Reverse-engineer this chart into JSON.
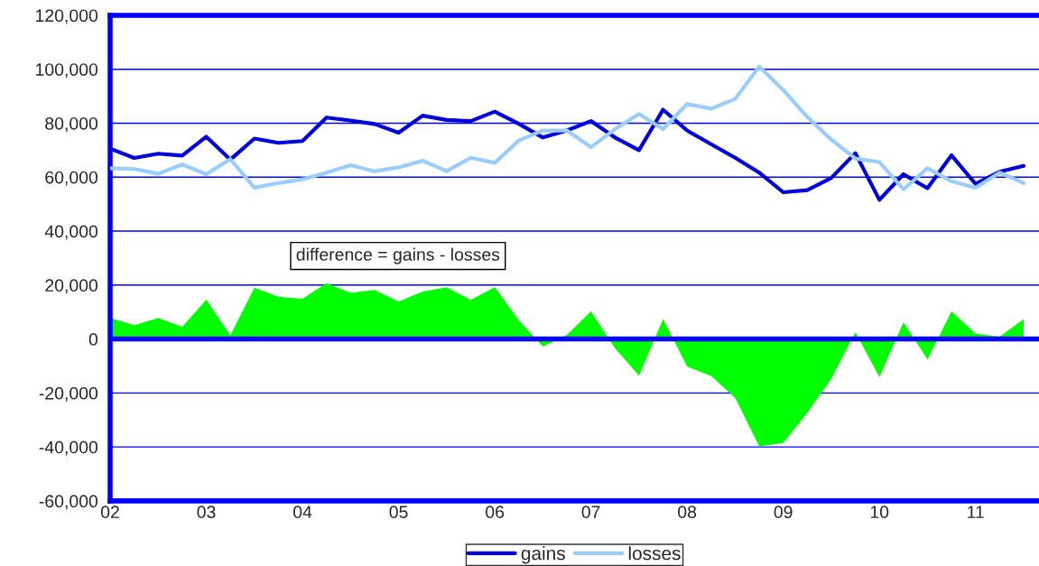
{
  "chart_data": {
    "type": "line",
    "x": [
      2002,
      2002.25,
      2002.5,
      2002.75,
      2003,
      2003.25,
      2003.5,
      2003.75,
      2004,
      2004.25,
      2004.5,
      2004.75,
      2005,
      2005.25,
      2005.5,
      2005.75,
      2006,
      2006.25,
      2006.5,
      2006.75,
      2007,
      2007.25,
      2007.5,
      2007.75,
      2008,
      2008.25,
      2008.5,
      2008.75,
      2009,
      2009.25,
      2009.5,
      2009.75,
      2010,
      2010.25,
      2010.5,
      2010.75,
      2011,
      2011.25,
      2011.5
    ],
    "series": [
      {
        "name": "gains",
        "color": "#0000dd",
        "values": [
          70600,
          67100,
          68700,
          68000,
          75000,
          66500,
          74300,
          72700,
          73400,
          82100,
          81000,
          79700,
          76500,
          82800,
          81200,
          80800,
          84300,
          79800,
          74700,
          77300,
          80800,
          74700,
          70000,
          85000,
          77300,
          72200,
          67200,
          61700,
          54400,
          55200,
          59700,
          68900,
          51600,
          61100,
          55900,
          68100,
          57500,
          62000,
          64200
        ]
      },
      {
        "name": "losses",
        "color": "#99ccff",
        "values": [
          63300,
          63000,
          61300,
          64700,
          61100,
          66700,
          56100,
          57800,
          59200,
          61700,
          64400,
          62200,
          63600,
          66100,
          62200,
          67200,
          65300,
          73600,
          77300,
          77300,
          71100,
          77800,
          83400,
          77800,
          87100,
          85400,
          89000,
          101000,
          92300,
          82300,
          73900,
          66900,
          65600,
          55500,
          63300,
          58500,
          56100,
          61700,
          57800
        ]
      },
      {
        "type": "area",
        "color": "#00ff00",
        "values": [
          7800,
          5100,
          7800,
          4500,
          14600,
          1400,
          19000,
          15700,
          14900,
          20700,
          17200,
          18200,
          13900,
          17600,
          19200,
          14500,
          19300,
          7000,
          -2800,
          1500,
          10200,
          -3400,
          -13600,
          7400,
          -10200,
          -13700,
          -21800,
          -39800,
          -38500,
          -27400,
          -14700,
          2500,
          -14100,
          6200,
          -7600,
          10200,
          2000,
          900,
          7400
        ]
      }
    ],
    "xlim": [
      2002,
      2011.66
    ],
    "xticks": [
      {
        "value": 2002,
        "label": "02"
      },
      {
        "value": 2003,
        "label": "03"
      },
      {
        "value": 2004,
        "label": "04"
      },
      {
        "value": 2005,
        "label": "05"
      },
      {
        "value": 2006,
        "label": "06"
      },
      {
        "value": 2007,
        "label": "07"
      },
      {
        "value": 2008,
        "label": "08"
      },
      {
        "value": 2009,
        "label": "09"
      },
      {
        "value": 2010,
        "label": "10"
      },
      {
        "value": 2011,
        "label": "11"
      }
    ],
    "ylim": [
      -60000,
      120000
    ],
    "yticks": [
      {
        "value": -60000,
        "label": "-60,000"
      },
      {
        "value": -40000,
        "label": "-40,000"
      },
      {
        "value": -20000,
        "label": "-20,000"
      },
      0,
      {
        "value": 20000,
        "label": "20,000"
      },
      {
        "value": 40000,
        "label": "40,000"
      },
      {
        "value": 60000,
        "label": "60,000"
      },
      {
        "value": 80000,
        "label": "80,000"
      },
      {
        "value": 100000,
        "label": "100,000"
      },
      {
        "value": 120000,
        "label": "120,000"
      }
    ],
    "ref_lines": [
      {
        "axis": "y",
        "value": 0,
        "color": "#0000ff"
      }
    ],
    "grid": "y",
    "legend": "bottom",
    "annotations": [
      "difference = gains - losses"
    ]
  }
}
